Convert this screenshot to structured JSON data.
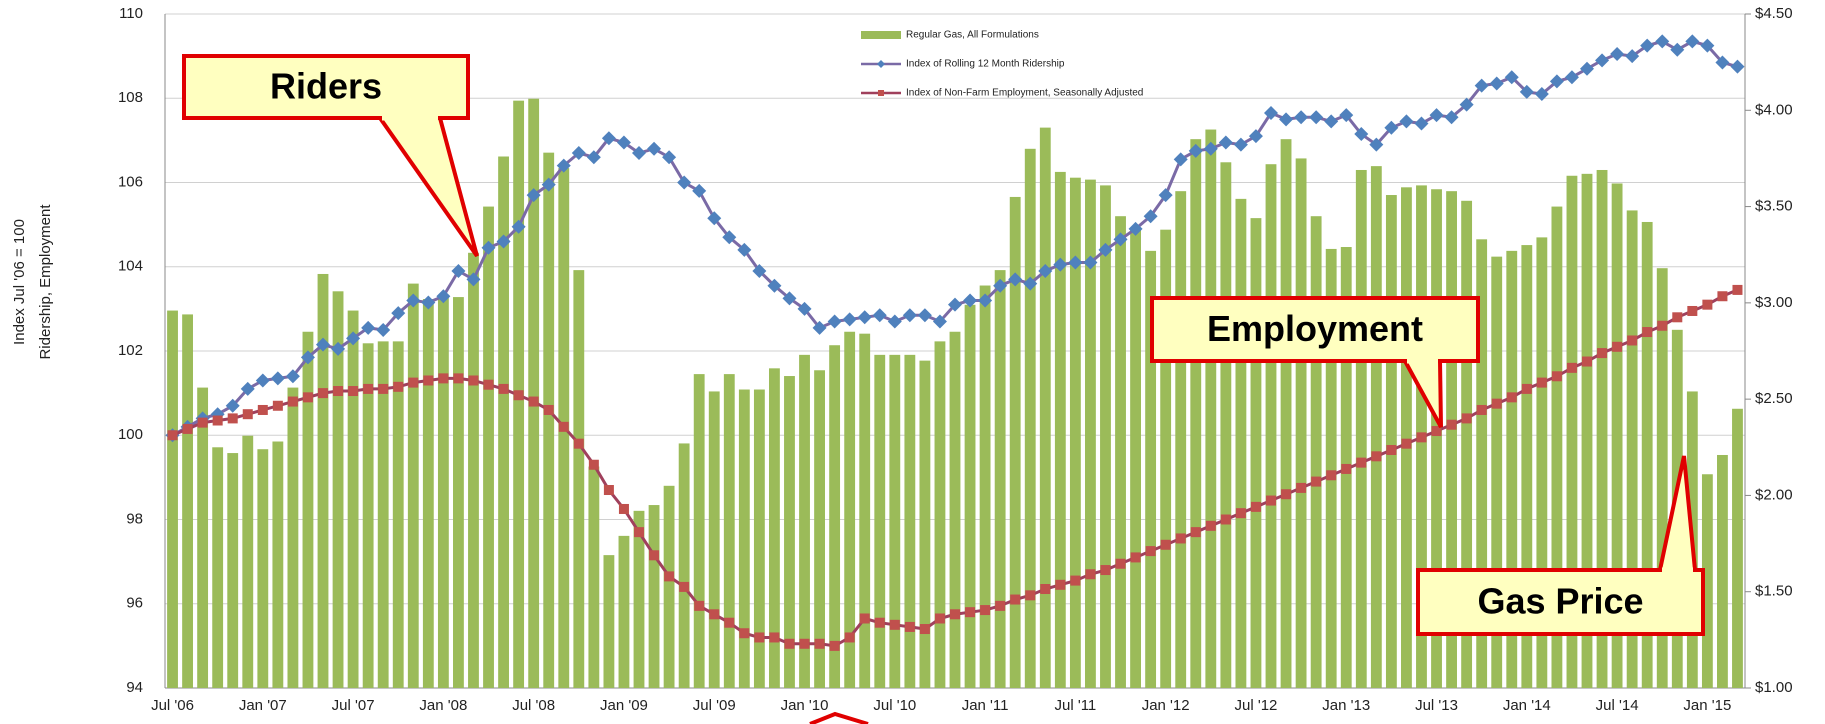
{
  "chart_data": {
    "type": "bar-line",
    "ylabel": [
      "Index Jul '06 = 100",
      "Ridership, Employment"
    ],
    "annotations": [
      "Riders",
      "Employment",
      "Gas Price"
    ],
    "legend": "upper center",
    "grid": true,
    "categories": [
      "Jul '06",
      null,
      null,
      null,
      null,
      null,
      "Jan '07",
      null,
      null,
      null,
      null,
      null,
      "Jul '07",
      null,
      null,
      null,
      null,
      null,
      "Jan '08",
      null,
      null,
      null,
      null,
      null,
      "Jul '08",
      null,
      null,
      null,
      null,
      null,
      "Jan '09",
      null,
      null,
      null,
      null,
      null,
      "Jul '09",
      null,
      null,
      null,
      null,
      null,
      "Jan '10",
      null,
      null,
      null,
      null,
      null,
      "Jul '10",
      null,
      null,
      null,
      null,
      null,
      "Jan '11",
      null,
      null,
      null,
      null,
      null,
      "Jul '11",
      null,
      null,
      null,
      null,
      null,
      "Jan '12",
      null,
      null,
      null,
      null,
      null,
      "Jul '12",
      null,
      null,
      null,
      null,
      null,
      "Jan '13",
      null,
      null,
      null,
      null,
      null,
      "Jul '13",
      null,
      null,
      null,
      null,
      null,
      "Jan '14",
      null,
      null,
      null,
      null,
      null,
      "Jul '14",
      null,
      null,
      null,
      null,
      null,
      "Jan '15",
      null,
      null
    ],
    "ylim": [
      94,
      110
    ],
    "yticks": [
      94,
      96,
      98,
      100,
      102,
      104,
      106,
      108,
      110
    ],
    "y2lim": [
      1.0,
      4.5
    ],
    "y2ticks": [
      {
        "value": 1.0,
        "label": "$1.00"
      },
      {
        "value": 1.5,
        "label": "$1.50"
      },
      {
        "value": 2.0,
        "label": "$2.00"
      },
      {
        "value": 2.5,
        "label": "$2.50"
      },
      {
        "value": 3.0,
        "label": "$3.00"
      },
      {
        "value": 3.5,
        "label": "$3.50"
      },
      {
        "value": 4.0,
        "label": "$4.00"
      },
      {
        "value": 4.5,
        "label": "$4.50"
      }
    ],
    "series": [
      {
        "name": "Regular Gas, All Formulations",
        "kind": "bar",
        "axis": "y2",
        "color": "#9bbb59",
        "values": [
          2.96,
          2.94,
          2.56,
          2.25,
          2.22,
          2.31,
          2.24,
          2.28,
          2.56,
          2.85,
          3.15,
          3.06,
          2.96,
          2.79,
          2.8,
          2.8,
          3.1,
          3.02,
          3.04,
          3.03,
          3.26,
          3.5,
          3.76,
          4.05,
          4.06,
          3.78,
          3.7,
          3.17,
          2.15,
          1.69,
          1.79,
          1.92,
          1.95,
          2.05,
          2.27,
          2.63,
          2.54,
          2.63,
          2.55,
          2.55,
          2.66,
          2.62,
          2.73,
          2.65,
          2.78,
          2.85,
          2.84,
          2.73,
          2.73,
          2.73,
          2.7,
          2.8,
          2.85,
          2.99,
          3.09,
          3.17,
          3.55,
          3.8,
          3.91,
          3.68,
          3.65,
          3.64,
          3.61,
          3.45,
          3.38,
          3.27,
          3.38,
          3.58,
          3.85,
          3.9,
          3.73,
          3.54,
          3.44,
          3.72,
          3.85,
          3.75,
          3.45,
          3.28,
          3.29,
          3.69,
          3.71,
          3.56,
          3.6,
          3.61,
          3.59,
          3.58,
          3.53,
          3.33,
          3.24,
          3.27,
          3.3,
          3.34,
          3.5,
          3.66,
          3.67,
          3.69,
          3.62,
          3.48,
          3.42,
          3.18,
          2.86,
          2.54,
          2.11,
          2.21,
          2.45
        ]
      },
      {
        "name": "Index of Rolling 12 Month Ridership",
        "kind": "line",
        "axis": "y",
        "color": "#7a6aa6",
        "marker_color": "#4f81bd",
        "marker": "diamond",
        "values": [
          100.0,
          100.2,
          100.4,
          100.5,
          100.7,
          101.1,
          101.3,
          101.35,
          101.4,
          101.85,
          102.15,
          102.05,
          102.3,
          102.55,
          102.5,
          102.9,
          103.2,
          103.15,
          103.3,
          103.9,
          103.7,
          104.45,
          104.6,
          104.95,
          105.7,
          105.95,
          106.4,
          106.7,
          106.6,
          107.05,
          106.95,
          106.7,
          106.8,
          106.6,
          106.0,
          105.8,
          105.15,
          104.7,
          104.4,
          103.9,
          103.55,
          103.25,
          103.0,
          102.55,
          102.7,
          102.75,
          102.8,
          102.85,
          102.7,
          102.85,
          102.85,
          102.7,
          103.1,
          103.2,
          103.2,
          103.55,
          103.7,
          103.6,
          103.9,
          104.05,
          104.1,
          104.1,
          104.4,
          104.65,
          104.9,
          105.2,
          105.7,
          106.55,
          106.75,
          106.8,
          106.95,
          106.9,
          107.1,
          107.65,
          107.5,
          107.55,
          107.55,
          107.45,
          107.6,
          107.15,
          106.9,
          107.3,
          107.45,
          107.4,
          107.6,
          107.55,
          107.85,
          108.3,
          108.35,
          108.5,
          108.15,
          108.1,
          108.4,
          108.5,
          108.7,
          108.9,
          109.05,
          109.0,
          109.25,
          109.35,
          109.15,
          109.35,
          109.25,
          108.85,
          108.75
        ]
      },
      {
        "name": "Index of Non-Farm Employment, Seasonally Adjusted",
        "kind": "line",
        "axis": "y",
        "color": "#a0405c",
        "marker_color": "#c0504d",
        "marker": "square",
        "values": [
          100.0,
          100.15,
          100.3,
          100.35,
          100.4,
          100.5,
          100.6,
          100.7,
          100.8,
          100.9,
          101.0,
          101.05,
          101.05,
          101.1,
          101.1,
          101.15,
          101.25,
          101.3,
          101.35,
          101.35,
          101.3,
          101.2,
          101.1,
          100.95,
          100.8,
          100.6,
          100.2,
          99.8,
          99.3,
          98.7,
          98.25,
          97.7,
          97.15,
          96.65,
          96.4,
          95.95,
          95.75,
          95.55,
          95.3,
          95.2,
          95.2,
          95.05,
          95.05,
          95.05,
          95.0,
          95.2,
          95.65,
          95.55,
          95.5,
          95.45,
          95.4,
          95.65,
          95.75,
          95.8,
          95.85,
          95.95,
          96.1,
          96.2,
          96.35,
          96.45,
          96.55,
          96.7,
          96.8,
          96.95,
          97.1,
          97.25,
          97.4,
          97.55,
          97.7,
          97.85,
          98.0,
          98.15,
          98.3,
          98.45,
          98.6,
          98.75,
          98.9,
          99.05,
          99.2,
          99.35,
          99.5,
          99.65,
          99.8,
          99.95,
          100.1,
          100.25,
          100.4,
          100.6,
          100.75,
          100.9,
          101.1,
          101.25,
          101.4,
          101.6,
          101.75,
          101.95,
          102.1,
          102.25,
          102.45,
          102.6,
          102.8,
          102.95,
          103.1,
          103.3,
          103.45
        ]
      }
    ]
  }
}
